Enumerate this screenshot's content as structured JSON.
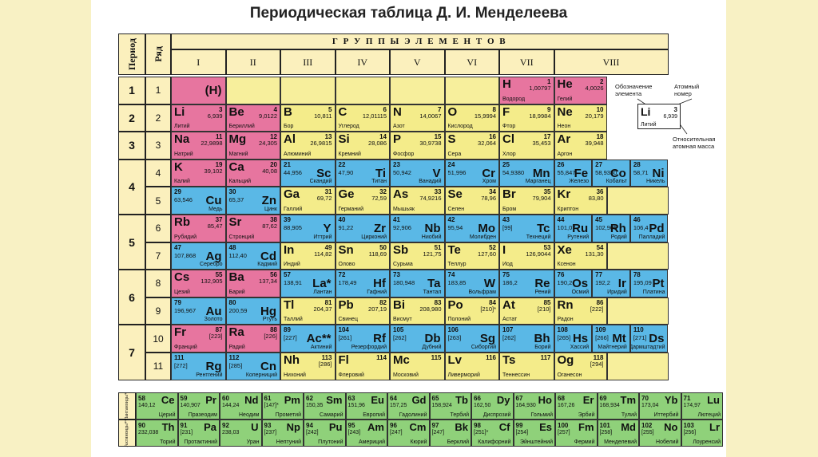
{
  "title": "Периодическая таблица Д. И. Менделеева",
  "header": {
    "period": "Период",
    "row": "Ряд",
    "groups_title": "Г Р У П П Ы   Э Л Е М Е Н Т О В",
    "groups": [
      "I",
      "II",
      "III",
      "IV",
      "V",
      "VI",
      "VII",
      "VIII"
    ]
  },
  "periods": [
    "1",
    "2",
    "3",
    "4",
    "5",
    "6",
    "7"
  ],
  "rows": [
    "1",
    "2",
    "3",
    "4",
    "5",
    "6",
    "7",
    "8",
    "9",
    "10",
    "11"
  ],
  "legend": {
    "designation": "Обозначение элемента",
    "atomic_number": "Атомный номер",
    "relative_mass": "Относительная атомная масса",
    "example_symbol": "Li",
    "example_number": "3",
    "example_mass": "6,939",
    "example_name": "Литий"
  },
  "colors": {
    "s": "#e7759f",
    "p": "#f4ec8a",
    "d": "#5ab8e6",
    "f": "#8fd17a",
    "empty": "#f7ef9c",
    "header": "#fbf0bd"
  },
  "elements": [
    {
      "sym": "(H)",
      "num": "",
      "mass": "",
      "name": "",
      "type": "s",
      "row": 1,
      "col": 1,
      "right": true
    },
    {
      "sym": "H",
      "num": "1",
      "mass": "1,00797",
      "name": "Водород",
      "type": "s",
      "row": 1,
      "col": 7
    },
    {
      "sym": "He",
      "num": "2",
      "mass": "4,0026",
      "name": "Гелий",
      "type": "s",
      "row": 1,
      "col": 8
    },
    {
      "sym": "Li",
      "num": "3",
      "mass": "6,939",
      "name": "Литий",
      "type": "s",
      "row": 2,
      "col": 1
    },
    {
      "sym": "Be",
      "num": "4",
      "mass": "9,0122",
      "name": "Бериллий",
      "type": "s",
      "row": 2,
      "col": 2
    },
    {
      "sym": "B",
      "num": "5",
      "mass": "10,811",
      "name": "Бор",
      "type": "p",
      "row": 2,
      "col": 3
    },
    {
      "sym": "C",
      "num": "6",
      "mass": "12,01115",
      "name": "Углерод",
      "type": "p",
      "row": 2,
      "col": 4
    },
    {
      "sym": "N",
      "num": "7",
      "mass": "14,0067",
      "name": "Азот",
      "type": "p",
      "row": 2,
      "col": 5
    },
    {
      "sym": "O",
      "num": "8",
      "mass": "15,9994",
      "name": "Кислород",
      "type": "p",
      "row": 2,
      "col": 6
    },
    {
      "sym": "F",
      "num": "9",
      "mass": "18,9984",
      "name": "Фтор",
      "type": "p",
      "row": 2,
      "col": 7
    },
    {
      "sym": "Ne",
      "num": "10",
      "mass": "20,179",
      "name": "Неон",
      "type": "p",
      "row": 2,
      "col": 8
    },
    {
      "sym": "Na",
      "num": "11",
      "mass": "22,9898",
      "name": "Натрий",
      "type": "s",
      "row": 3,
      "col": 1
    },
    {
      "sym": "Mg",
      "num": "12",
      "mass": "24,305",
      "name": "Магний",
      "type": "s",
      "row": 3,
      "col": 2
    },
    {
      "sym": "Al",
      "num": "13",
      "mass": "26,9815",
      "name": "Алюминий",
      "type": "p",
      "row": 3,
      "col": 3
    },
    {
      "sym": "Si",
      "num": "14",
      "mass": "28,086",
      "name": "Кремний",
      "type": "p",
      "row": 3,
      "col": 4
    },
    {
      "sym": "P",
      "num": "15",
      "mass": "30,9738",
      "name": "Фосфор",
      "type": "p",
      "row": 3,
      "col": 5
    },
    {
      "sym": "S",
      "num": "16",
      "mass": "32,064",
      "name": "Сера",
      "type": "p",
      "row": 3,
      "col": 6
    },
    {
      "sym": "Cl",
      "num": "17",
      "mass": "35,453",
      "name": "Хлор",
      "type": "p",
      "row": 3,
      "col": 7
    },
    {
      "sym": "Ar",
      "num": "18",
      "mass": "39,948",
      "name": "Аргон",
      "type": "p",
      "row": 3,
      "col": 8
    },
    {
      "sym": "K",
      "num": "19",
      "mass": "39,102",
      "name": "Калий",
      "type": "s",
      "row": 4,
      "col": 1
    },
    {
      "sym": "Ca",
      "num": "20",
      "mass": "40,08",
      "name": "Кальций",
      "type": "s",
      "row": 4,
      "col": 2
    },
    {
      "sym": "Sc",
      "num": "21",
      "mass": "44,956",
      "name": "Скандий",
      "type": "d",
      "row": 4,
      "col": 3,
      "right": true
    },
    {
      "sym": "Ti",
      "num": "22",
      "mass": "47,90",
      "name": "Титан",
      "type": "d",
      "row": 4,
      "col": 4,
      "right": true
    },
    {
      "sym": "V",
      "num": "23",
      "mass": "50,942",
      "name": "Ванадий",
      "type": "d",
      "row": 4,
      "col": 5,
      "right": true
    },
    {
      "sym": "Cr",
      "num": "24",
      "mass": "51,996",
      "name": "Хром",
      "type": "d",
      "row": 4,
      "col": 6,
      "right": true
    },
    {
      "sym": "Mn",
      "num": "25",
      "mass": "54,9380",
      "name": "Марганец",
      "type": "d",
      "row": 4,
      "col": 7,
      "right": true
    },
    {
      "sym": "Fe",
      "num": "26",
      "mass": "55,847",
      "name": "Железо",
      "type": "d",
      "row": 4,
      "col": 8.0,
      "right": true
    },
    {
      "sym": "Co",
      "num": "27",
      "mass": "58,9330",
      "name": "Кобальт",
      "type": "d",
      "row": 4,
      "col": 8.33,
      "right": true
    },
    {
      "sym": "Ni",
      "num": "28",
      "mass": "58,71",
      "name": "Никель",
      "type": "d",
      "row": 4,
      "col": 8.66,
      "right": true
    },
    {
      "sym": "Cu",
      "num": "29",
      "mass": "63,546",
      "name": "Медь",
      "type": "d",
      "row": 5,
      "col": 1,
      "right": true
    },
    {
      "sym": "Zn",
      "num": "30",
      "mass": "65,37",
      "name": "Цинк",
      "type": "d",
      "row": 5,
      "col": 2,
      "right": true
    },
    {
      "sym": "Ga",
      "num": "31",
      "mass": "69,72",
      "name": "Галлий",
      "type": "p",
      "row": 5,
      "col": 3
    },
    {
      "sym": "Ge",
      "num": "32",
      "mass": "72,59",
      "name": "Германий",
      "type": "p",
      "row": 5,
      "col": 4
    },
    {
      "sym": "As",
      "num": "33",
      "mass": "74,9216",
      "name": "Мышьяк",
      "type": "p",
      "row": 5,
      "col": 5
    },
    {
      "sym": "Se",
      "num": "34",
      "mass": "78,96",
      "name": "Селен",
      "type": "p",
      "row": 5,
      "col": 6
    },
    {
      "sym": "Br",
      "num": "35",
      "mass": "79,904",
      "name": "Бром",
      "type": "p",
      "row": 5,
      "col": 7
    },
    {
      "sym": "Kr",
      "num": "36",
      "mass": "83,80",
      "name": "Криптон",
      "type": "p",
      "row": 5,
      "col": 8
    },
    {
      "sym": "Rb",
      "num": "37",
      "mass": "85,47",
      "name": "Рубидий",
      "type": "s",
      "row": 6,
      "col": 1
    },
    {
      "sym": "Sr",
      "num": "38",
      "mass": "87,62",
      "name": "Стронций",
      "type": "s",
      "row": 6,
      "col": 2
    },
    {
      "sym": "Y",
      "num": "39",
      "mass": "88,905",
      "name": "Иттрий",
      "type": "d",
      "row": 6,
      "col": 3,
      "right": true
    },
    {
      "sym": "Zr",
      "num": "40",
      "mass": "91,22",
      "name": "Цирконий",
      "type": "d",
      "row": 6,
      "col": 4,
      "right": true
    },
    {
      "sym": "Nb",
      "num": "41",
      "mass": "92,906",
      "name": "Ниобий",
      "type": "d",
      "row": 6,
      "col": 5,
      "right": true
    },
    {
      "sym": "Mo",
      "num": "42",
      "mass": "95,94",
      "name": "Молибден",
      "type": "d",
      "row": 6,
      "col": 6,
      "right": true
    },
    {
      "sym": "Tc",
      "num": "43",
      "mass": "[99]",
      "name": "Технеций",
      "type": "d",
      "row": 6,
      "col": 7,
      "right": true
    },
    {
      "sym": "Ru",
      "num": "44",
      "mass": "101,07",
      "name": "Рутений",
      "type": "d",
      "row": 6,
      "col": 8.0,
      "right": true
    },
    {
      "sym": "Rh",
      "num": "45",
      "mass": "102,905",
      "name": "Родий",
      "type": "d",
      "row": 6,
      "col": 8.33,
      "right": true
    },
    {
      "sym": "Pd",
      "num": "46",
      "mass": "106,4",
      "name": "Палладий",
      "type": "d",
      "row": 6,
      "col": 8.66,
      "right": true
    },
    {
      "sym": "Ag",
      "num": "47",
      "mass": "107,868",
      "name": "Серебро",
      "type": "d",
      "row": 7,
      "col": 1,
      "right": true
    },
    {
      "sym": "Cd",
      "num": "48",
      "mass": "112,40",
      "name": "Кадмий",
      "type": "d",
      "row": 7,
      "col": 2,
      "right": true
    },
    {
      "sym": "In",
      "num": "49",
      "mass": "114,82",
      "name": "Индий",
      "type": "p",
      "row": 7,
      "col": 3
    },
    {
      "sym": "Sn",
      "num": "50",
      "mass": "118,69",
      "name": "Олово",
      "type": "p",
      "row": 7,
      "col": 4
    },
    {
      "sym": "Sb",
      "num": "51",
      "mass": "121,75",
      "name": "Сурьма",
      "type": "p",
      "row": 7,
      "col": 5
    },
    {
      "sym": "Te",
      "num": "52",
      "mass": "127,60",
      "name": "Теллур",
      "type": "p",
      "row": 7,
      "col": 6
    },
    {
      "sym": "I",
      "num": "53",
      "mass": "126,9044",
      "name": "Иод",
      "type": "p",
      "row": 7,
      "col": 7
    },
    {
      "sym": "Xe",
      "num": "54",
      "mass": "131,30",
      "name": "Ксенон",
      "type": "p",
      "row": 7,
      "col": 8
    },
    {
      "sym": "Cs",
      "num": "55",
      "mass": "132,905",
      "name": "Цезий",
      "type": "s",
      "row": 8,
      "col": 1
    },
    {
      "sym": "Ba",
      "num": "56",
      "mass": "137,34",
      "name": "Барий",
      "type": "s",
      "row": 8,
      "col": 2
    },
    {
      "sym": "La*",
      "num": "57",
      "mass": "138,91",
      "name": "Лантан",
      "type": "d",
      "row": 8,
      "col": 3,
      "right": true
    },
    {
      "sym": "Hf",
      "num": "72",
      "mass": "178,49",
      "name": "Гафний",
      "type": "d",
      "row": 8,
      "col": 4,
      "right": true
    },
    {
      "sym": "Ta",
      "num": "73",
      "mass": "180,948",
      "name": "Тантал",
      "type": "d",
      "row": 8,
      "col": 5,
      "right": true
    },
    {
      "sym": "W",
      "num": "74",
      "mass": "183,85",
      "name": "Вольфрам",
      "type": "d",
      "row": 8,
      "col": 6,
      "right": true
    },
    {
      "sym": "Re",
      "num": "75",
      "mass": "186,2",
      "name": "Рений",
      "type": "d",
      "row": 8,
      "col": 7,
      "right": true
    },
    {
      "sym": "Os",
      "num": "76",
      "mass": "190,2",
      "name": "Осмий",
      "type": "d",
      "row": 8,
      "col": 8.0,
      "right": true
    },
    {
      "sym": "Ir",
      "num": "77",
      "mass": "192,2",
      "name": "Иридий",
      "type": "d",
      "row": 8,
      "col": 8.33,
      "right": true
    },
    {
      "sym": "Pt",
      "num": "78",
      "mass": "195,09",
      "name": "Платина",
      "type": "d",
      "row": 8,
      "col": 8.66,
      "right": true
    },
    {
      "sym": "Au",
      "num": "79",
      "mass": "196,967",
      "name": "Золото",
      "type": "d",
      "row": 9,
      "col": 1,
      "right": true
    },
    {
      "sym": "Hg",
      "num": "80",
      "mass": "200,59",
      "name": "Ртуть",
      "type": "d",
      "row": 9,
      "col": 2,
      "right": true
    },
    {
      "sym": "Tl",
      "num": "81",
      "mass": "204,37",
      "name": "Таллий",
      "type": "p",
      "row": 9,
      "col": 3
    },
    {
      "sym": "Pb",
      "num": "82",
      "mass": "207,19",
      "name": "Свинец",
      "type": "p",
      "row": 9,
      "col": 4
    },
    {
      "sym": "Bi",
      "num": "83",
      "mass": "208,980",
      "name": "Висмут",
      "type": "p",
      "row": 9,
      "col": 5
    },
    {
      "sym": "Po",
      "num": "84",
      "mass": "[210]*",
      "name": "Полоний",
      "type": "p",
      "row": 9,
      "col": 6
    },
    {
      "sym": "At",
      "num": "85",
      "mass": "[210]",
      "name": "Астат",
      "type": "p",
      "row": 9,
      "col": 7
    },
    {
      "sym": "Rn",
      "num": "86",
      "mass": "[222]",
      "name": "Радон",
      "type": "p",
      "row": 9,
      "col": 8
    },
    {
      "sym": "Fr",
      "num": "87",
      "mass": "[223]",
      "name": "Франций",
      "type": "s",
      "row": 10,
      "col": 1
    },
    {
      "sym": "Ra",
      "num": "88",
      "mass": "[226]",
      "name": "Радий",
      "type": "s",
      "row": 10,
      "col": 2
    },
    {
      "sym": "Ac**",
      "num": "89",
      "mass": "[227]",
      "name": "Актиний",
      "type": "d",
      "row": 10,
      "col": 3,
      "right": true
    },
    {
      "sym": "Rf",
      "num": "104",
      "mass": "[261]",
      "name": "Резерфордий",
      "type": "d",
      "row": 10,
      "col": 4,
      "right": true
    },
    {
      "sym": "Db",
      "num": "105",
      "mass": "[262]",
      "name": "Дубний",
      "type": "d",
      "row": 10,
      "col": 5,
      "right": true
    },
    {
      "sym": "Sg",
      "num": "106",
      "mass": "[263]",
      "name": "Сиборгий",
      "type": "d",
      "row": 10,
      "col": 6,
      "right": true
    },
    {
      "sym": "Bh",
      "num": "107",
      "mass": "[262]",
      "name": "Борий",
      "type": "d",
      "row": 10,
      "col": 7,
      "right": true
    },
    {
      "sym": "Hs",
      "num": "108",
      "mass": "[265]",
      "name": "Хассий",
      "type": "d",
      "row": 10,
      "col": 8.0,
      "right": true
    },
    {
      "sym": "Mt",
      "num": "109",
      "mass": "[266]",
      "name": "Майтнерий",
      "type": "d",
      "row": 10,
      "col": 8.33,
      "right": true
    },
    {
      "sym": "Ds",
      "num": "110",
      "mass": "[271]",
      "name": "Дармштадтий",
      "type": "d",
      "row": 10,
      "col": 8.66,
      "right": true
    },
    {
      "sym": "Rg",
      "num": "111",
      "mass": "[272]",
      "name": "Рентгений",
      "type": "d",
      "row": 11,
      "col": 1,
      "right": true
    },
    {
      "sym": "Cn",
      "num": "112",
      "mass": "[285]",
      "name": "Коперниций",
      "type": "d",
      "row": 11,
      "col": 2,
      "right": true
    },
    {
      "sym": "Nh",
      "num": "113",
      "mass": "[286]",
      "name": "Нихоний",
      "type": "p",
      "row": 11,
      "col": 3
    },
    {
      "sym": "Fl",
      "num": "114",
      "mass": "",
      "name": "Флеровий",
      "type": "p",
      "row": 11,
      "col": 4
    },
    {
      "sym": "Mc",
      "num": "115",
      "mass": "",
      "name": "Московий",
      "type": "p",
      "row": 11,
      "col": 5
    },
    {
      "sym": "Lv",
      "num": "116",
      "mass": "",
      "name": "Ливерморий",
      "type": "p",
      "row": 11,
      "col": 6
    },
    {
      "sym": "Ts",
      "num": "117",
      "mass": "",
      "name": "Теннессин",
      "type": "p",
      "row": 11,
      "col": 7
    },
    {
      "sym": "Og",
      "num": "118",
      "mass": "[294]",
      "name": "Оганесон",
      "type": "p",
      "row": 11,
      "col": 8
    }
  ],
  "lanthanides_label": "Лантаноиды*",
  "actinides_label": "Актиноиды**",
  "lanthanides": [
    {
      "sym": "Ce",
      "num": "58",
      "mass": "140,12",
      "name": "Церий"
    },
    {
      "sym": "Pr",
      "num": "59",
      "mass": "140,907",
      "name": "Празеодим"
    },
    {
      "sym": "Nd",
      "num": "60",
      "mass": "144,24",
      "name": "Неодим"
    },
    {
      "sym": "Pm",
      "num": "61",
      "mass": "[147]*",
      "name": "Прометий"
    },
    {
      "sym": "Sm",
      "num": "62",
      "mass": "150,35",
      "name": "Самарий"
    },
    {
      "sym": "Eu",
      "num": "63",
      "mass": "151,96",
      "name": "Европий"
    },
    {
      "sym": "Gd",
      "num": "64",
      "mass": "157,25",
      "name": "Гадолиний"
    },
    {
      "sym": "Tb",
      "num": "65",
      "mass": "158,924",
      "name": "Тербий"
    },
    {
      "sym": "Dy",
      "num": "66",
      "mass": "162,50",
      "name": "Диспрозий"
    },
    {
      "sym": "Ho",
      "num": "67",
      "mass": "164,930",
      "name": "Гольмий"
    },
    {
      "sym": "Er",
      "num": "68",
      "mass": "167,26",
      "name": "Эрбий"
    },
    {
      "sym": "Tm",
      "num": "69",
      "mass": "168,934",
      "name": "Тулий"
    },
    {
      "sym": "Yb",
      "num": "70",
      "mass": "173,04",
      "name": "Иттербий"
    },
    {
      "sym": "Lu",
      "num": "71",
      "mass": "174,97",
      "name": "Лютеций"
    }
  ],
  "actinides": [
    {
      "sym": "Th",
      "num": "90",
      "mass": "232,038",
      "name": "Торий"
    },
    {
      "sym": "Pa",
      "num": "91",
      "mass": "[231]",
      "name": "Протактиний"
    },
    {
      "sym": "U",
      "num": "92",
      "mass": "238,03",
      "name": "Уран"
    },
    {
      "sym": "Np",
      "num": "93",
      "mass": "[237]",
      "name": "Нептуний"
    },
    {
      "sym": "Pu",
      "num": "94",
      "mass": "[242]",
      "name": "Плутоний"
    },
    {
      "sym": "Am",
      "num": "95",
      "mass": "[243]",
      "name": "Америций"
    },
    {
      "sym": "Cm",
      "num": "96",
      "mass": "[247]",
      "name": "Кюрий"
    },
    {
      "sym": "Bk",
      "num": "97",
      "mass": "[247]",
      "name": "Берклий"
    },
    {
      "sym": "Cf",
      "num": "98",
      "mass": "[251]*",
      "name": "Калифорний"
    },
    {
      "sym": "Es",
      "num": "99",
      "mass": "[254]",
      "name": "Эйнштейний"
    },
    {
      "sym": "Fm",
      "num": "100",
      "mass": "[257]",
      "name": "Фермий"
    },
    {
      "sym": "Md",
      "num": "101",
      "mass": "[258]",
      "name": "Менделевий"
    },
    {
      "sym": "No",
      "num": "102",
      "mass": "[255]",
      "name": "Нобелий"
    },
    {
      "sym": "Lr",
      "num": "103",
      "mass": "[256]",
      "name": "Лоуренсий"
    }
  ]
}
